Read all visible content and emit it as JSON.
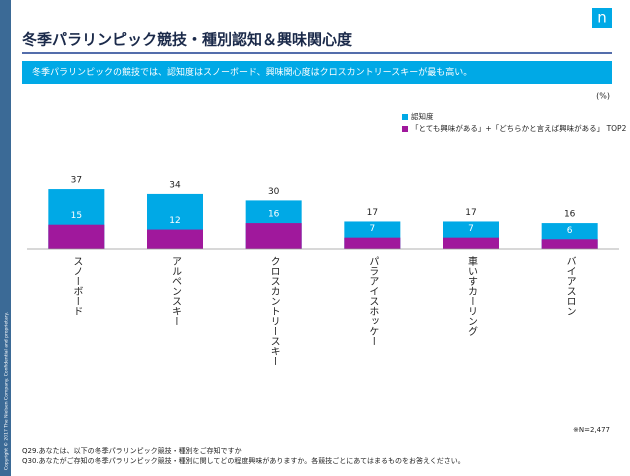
{
  "chart_data": {
    "type": "bar",
    "overlap": true,
    "title": "冬季パラリンピック競技・種別認知＆興味関心度",
    "subtitle": "冬季パラリンピックの競技では、認知度はスノーボード、興味関心度はクロスカントリースキーが最も高い。",
    "unit_label": "(%)",
    "categories": [
      "スノーボード",
      "アルペンスキー",
      "クロスカントリースキー",
      "パラアイスホッケー",
      "車いすカーリング",
      "バイアスロン"
    ],
    "series": [
      {
        "name": "認知度",
        "color": "#00a9e6",
        "values": [
          37,
          34,
          30,
          17,
          17,
          16
        ]
      },
      {
        "name": "「とても興味がある」+「どちらかと言えば興味がある」 TOP2",
        "color": "#a0189c",
        "values": [
          15,
          12,
          16,
          7,
          7,
          6
        ]
      }
    ],
    "note": "※N=2,477",
    "footnotes": [
      "Q29.あなたは、以下の冬季パラリンピック競技・種別をご存知ですか",
      "Q30.あなたがご存知の冬季パラリンピック競技・種別に関してどの程度興味がありますか。各競技ごとにあてはまるものをお答えください。"
    ],
    "copyright": "Copyright © 2017 The Nielsen Company. Confidential and proprietary.",
    "logo": "n"
  }
}
